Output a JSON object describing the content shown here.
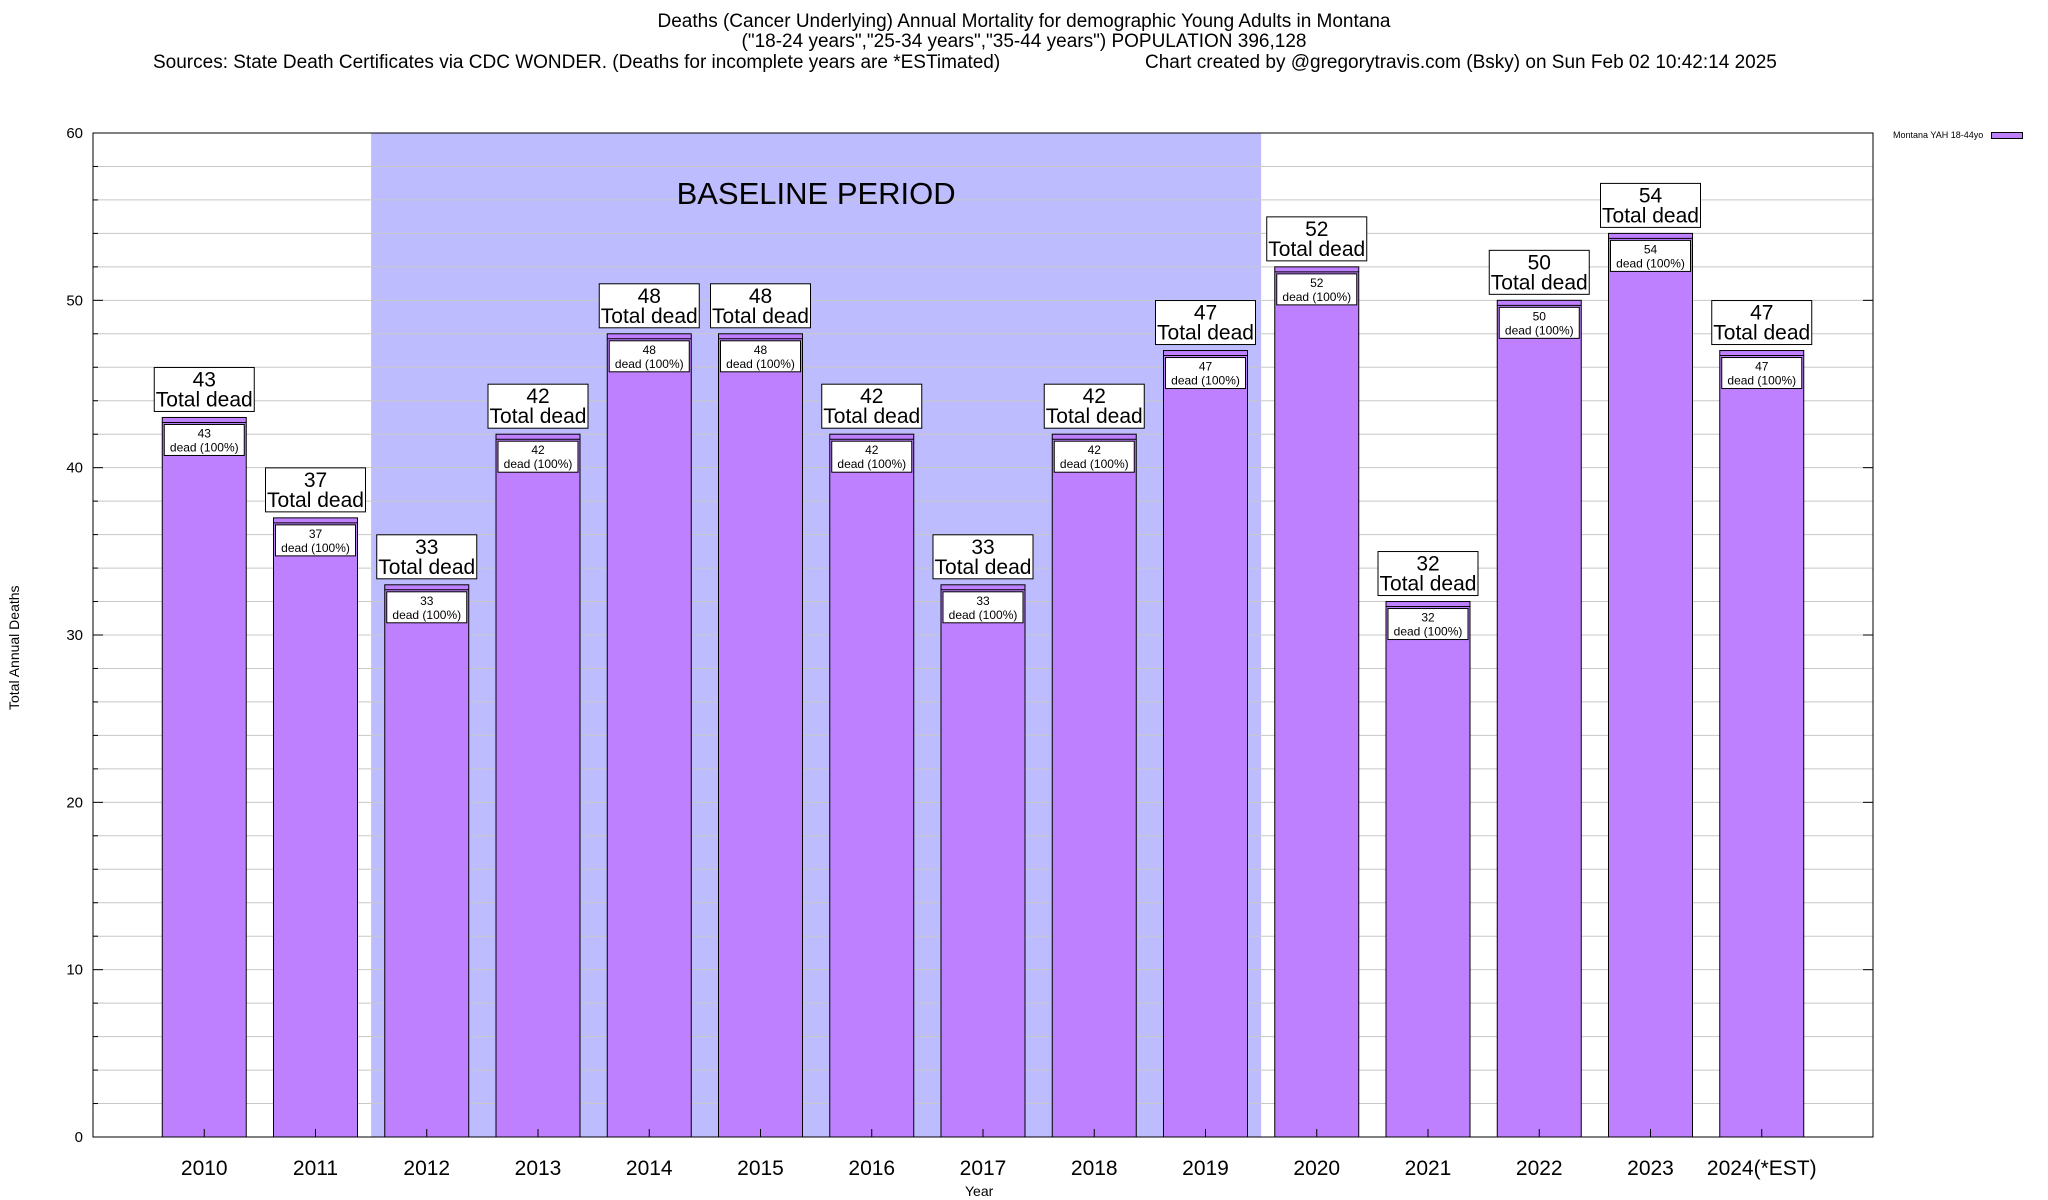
{
  "title": {
    "line1": "Deaths (Cancer Underlying) Annual Mortality for demographic Young Adults in Montana",
    "line2": "(\"18-24 years\",\"25-34 years\",\"35-44 years\") POPULATION 396,128",
    "sources": "Sources: State Death Certificates via CDC WONDER. (Deaths for incomplete years are *ESTimated)",
    "credit": "Chart created by @gregorytravis.com (Bsky) on Sun Feb 02 10:42:14 2025"
  },
  "colors": {
    "bar": "#bf80ff",
    "baseline_shade": "#bcbcff",
    "grid": "#c8c8c8"
  },
  "chart_data": {
    "type": "bar",
    "title": "Deaths (Cancer Underlying) Annual Mortality for demographic Young Adults in Montana",
    "xlabel": "Year",
    "ylabel": "Total Annual Deaths",
    "ylim": [
      0,
      60
    ],
    "yticks": [
      0,
      10,
      20,
      30,
      40,
      50,
      60
    ],
    "grid": true,
    "legend_position": "top-right",
    "categories": [
      "2010",
      "2011",
      "2012",
      "2013",
      "2014",
      "2015",
      "2016",
      "2017",
      "2018",
      "2019",
      "2020",
      "2021",
      "2022",
      "2023",
      "2024(*EST)"
    ],
    "series": [
      {
        "name": "Montana YAH 18-44yo",
        "values": [
          43,
          37,
          33,
          42,
          48,
          48,
          42,
          33,
          42,
          47,
          52,
          32,
          50,
          54,
          47
        ]
      }
    ],
    "total_label": "Total dead",
    "inner_label": "dead (100%)",
    "baseline_period": {
      "label": "BASELINE PERIOD",
      "from": "2012",
      "to": "2019"
    }
  }
}
